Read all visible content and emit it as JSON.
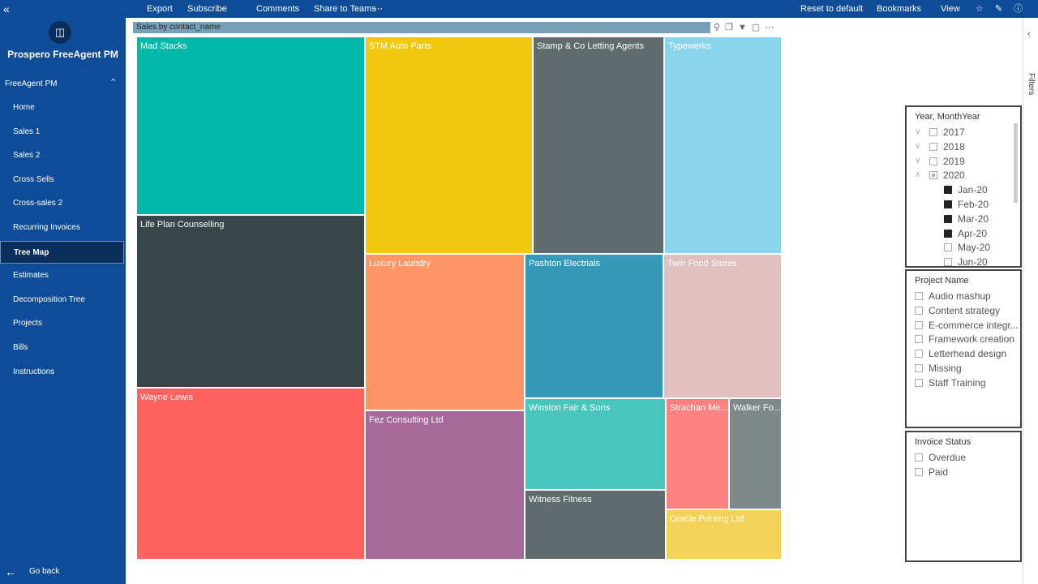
{
  "app": {
    "title": "Prospero FreeAgent PM",
    "section": "FreeAgent PM",
    "nav": [
      {
        "label": "Home"
      },
      {
        "label": "Sales 1"
      },
      {
        "label": "Sales 2"
      },
      {
        "label": "Cross Sells"
      },
      {
        "label": "Cross-sales 2"
      },
      {
        "label": "Recurring Invoices"
      },
      {
        "label": "Tree Map",
        "active": true
      },
      {
        "label": "Estimates"
      },
      {
        "label": "Decomposition Tree"
      },
      {
        "label": "Projects"
      },
      {
        "label": "Bills"
      },
      {
        "label": "Instructions"
      }
    ],
    "go_back": "Go back"
  },
  "toolbar": {
    "left": [
      "Export",
      "Subscribe",
      "Comments",
      "Share to Teams"
    ],
    "right": [
      "Reset to default",
      "Bookmarks",
      "View"
    ]
  },
  "visual": {
    "title": "Sales by contact_name",
    "tiles": [
      {
        "label": "Mad Stacks",
        "color": "#01B8AA"
      },
      {
        "label": "Life Plan Counselling",
        "color": "#374649"
      },
      {
        "label": "Wayne Lewis",
        "color": "#FD625E"
      },
      {
        "label": "STM Auto Parts",
        "color": "#F2C80F"
      },
      {
        "label": "Stamp & Co Letting Agents",
        "color": "#5F6B6D"
      },
      {
        "label": "Typewerks",
        "color": "#8AD4EB"
      },
      {
        "label": "Luxury Laundry",
        "color": "#FE9666"
      },
      {
        "label": "Fez Consulting Ltd",
        "color": "#A66999"
      },
      {
        "label": "Pashton Electrials",
        "color": "#3599B8"
      },
      {
        "label": "Twin Food Stores",
        "color": "#DFBFBF"
      },
      {
        "label": "Winston Fair & Sons",
        "color": "#4AC5BB"
      },
      {
        "label": "Witness Fitness",
        "color": "#5F6B6D"
      },
      {
        "label": "Strachan Me...",
        "color": "#FB8281"
      },
      {
        "label": "Walker Fo...",
        "color": "#7F898A"
      },
      {
        "label": "Gracie Printing Ltd",
        "color": "#F4D25A"
      }
    ]
  },
  "filters_pane": "Filters",
  "slicers": [
    {
      "title": "Year, MonthYear",
      "items": [
        {
          "label": "2017",
          "state": "off"
        },
        {
          "label": "2018",
          "state": "off"
        },
        {
          "label": "2019",
          "state": "off"
        },
        {
          "label": "2020",
          "state": "partial",
          "expanded": true
        },
        {
          "label": "Jan-20",
          "state": "on",
          "child": true
        },
        {
          "label": "Feb-20",
          "state": "on",
          "child": true
        },
        {
          "label": "Mar-20",
          "state": "on",
          "child": true
        },
        {
          "label": "Apr-20",
          "state": "on",
          "child": true
        },
        {
          "label": "May-20",
          "state": "off",
          "child": true
        },
        {
          "label": "Jun-20",
          "state": "off",
          "child": true
        }
      ]
    },
    {
      "title": "Project Name",
      "items": [
        {
          "label": "Audio mashup",
          "state": "off"
        },
        {
          "label": "Content strategy",
          "state": "off"
        },
        {
          "label": "E-commerce integr...",
          "state": "off"
        },
        {
          "label": "Framework creation",
          "state": "off"
        },
        {
          "label": "Letterhead design",
          "state": "off"
        },
        {
          "label": "Missing",
          "state": "off"
        },
        {
          "label": "Staff Training",
          "state": "off"
        }
      ]
    },
    {
      "title": "Invoice Status",
      "items": [
        {
          "label": "Overdue",
          "state": "off"
        },
        {
          "label": "Paid",
          "state": "off"
        }
      ]
    }
  ]
}
